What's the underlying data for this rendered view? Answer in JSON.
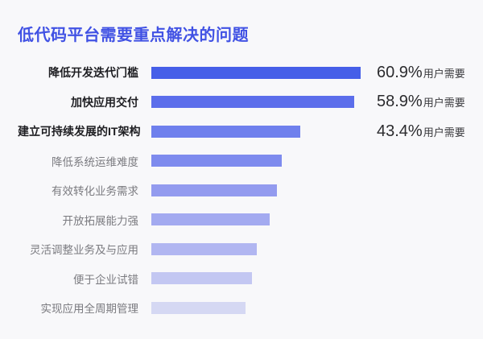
{
  "page": {
    "background_color": "#f8f8fa"
  },
  "header": {
    "title": "低代码平台需要重点解决的问题",
    "title_color": "#4152e4"
  },
  "chart_data": {
    "type": "bar",
    "orientation": "horizontal",
    "title": "低代码平台需要重点解决的问题",
    "categories": [
      "降低开发迭代门槛",
      "加快应用交付",
      "建立可持续发展的IT架构",
      "降低系统运维难度",
      "有效转化业务需求",
      "开放拓展能力强",
      "灵活调整业务及与应用",
      "便于企业试错",
      "实现应用全周期管理"
    ],
    "values": [
      60.9,
      58.9,
      43.4,
      37.9,
      36.5,
      34.4,
      30.7,
      29.3,
      27.4
    ],
    "value_labels": [
      "60.9%",
      "58.9%",
      "43.4%",
      "",
      "",
      "",
      "",
      "",
      ""
    ],
    "value_suffix": "用户需要",
    "emphasized_rows": 3,
    "bar_colors": [
      "#465fe8",
      "#5c6eeb",
      "#6f80ed",
      "#7e8bee",
      "#939bef",
      "#a3aaf0",
      "#b1b6f1",
      "#c3c7f2",
      "#d5d8f3"
    ],
    "xlim": [
      0,
      65
    ],
    "grid": false,
    "legend": false,
    "axis_visible": false
  }
}
